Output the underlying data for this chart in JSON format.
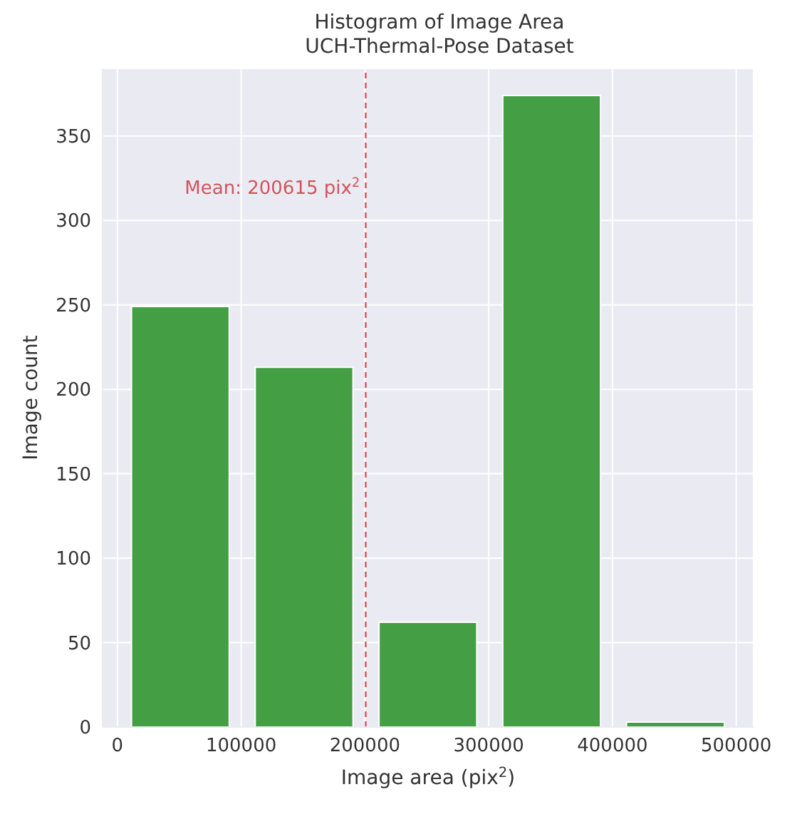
{
  "chart_data": {
    "type": "histogram",
    "title": "Histogram of Image Area\nUCH-Thermal-Pose Dataset",
    "xlabel": "Image area (pix$^{2}$)",
    "ylabel": "Image count",
    "bins": [
      1000,
      101000,
      201000,
      301000,
      401000,
      501000
    ],
    "values": [
      249,
      213,
      62,
      374,
      3
    ],
    "color": "#3a9a3a",
    "xlim": [
      -12000,
      514000
    ],
    "xticks": [
      0,
      100000,
      200000,
      300000,
      400000,
      500000
    ],
    "ylim": [
      0,
      390
    ],
    "yticks": [
      0,
      50,
      100,
      150,
      200,
      250,
      300,
      350
    ],
    "grid": true,
    "legend": false,
    "ref_lines": [
      {
        "axis": "x",
        "value": 200615,
        "label": "Mean: 200615 pix$^{2}$",
        "color": "#d0545a",
        "line_style": "dashed"
      }
    ]
  }
}
